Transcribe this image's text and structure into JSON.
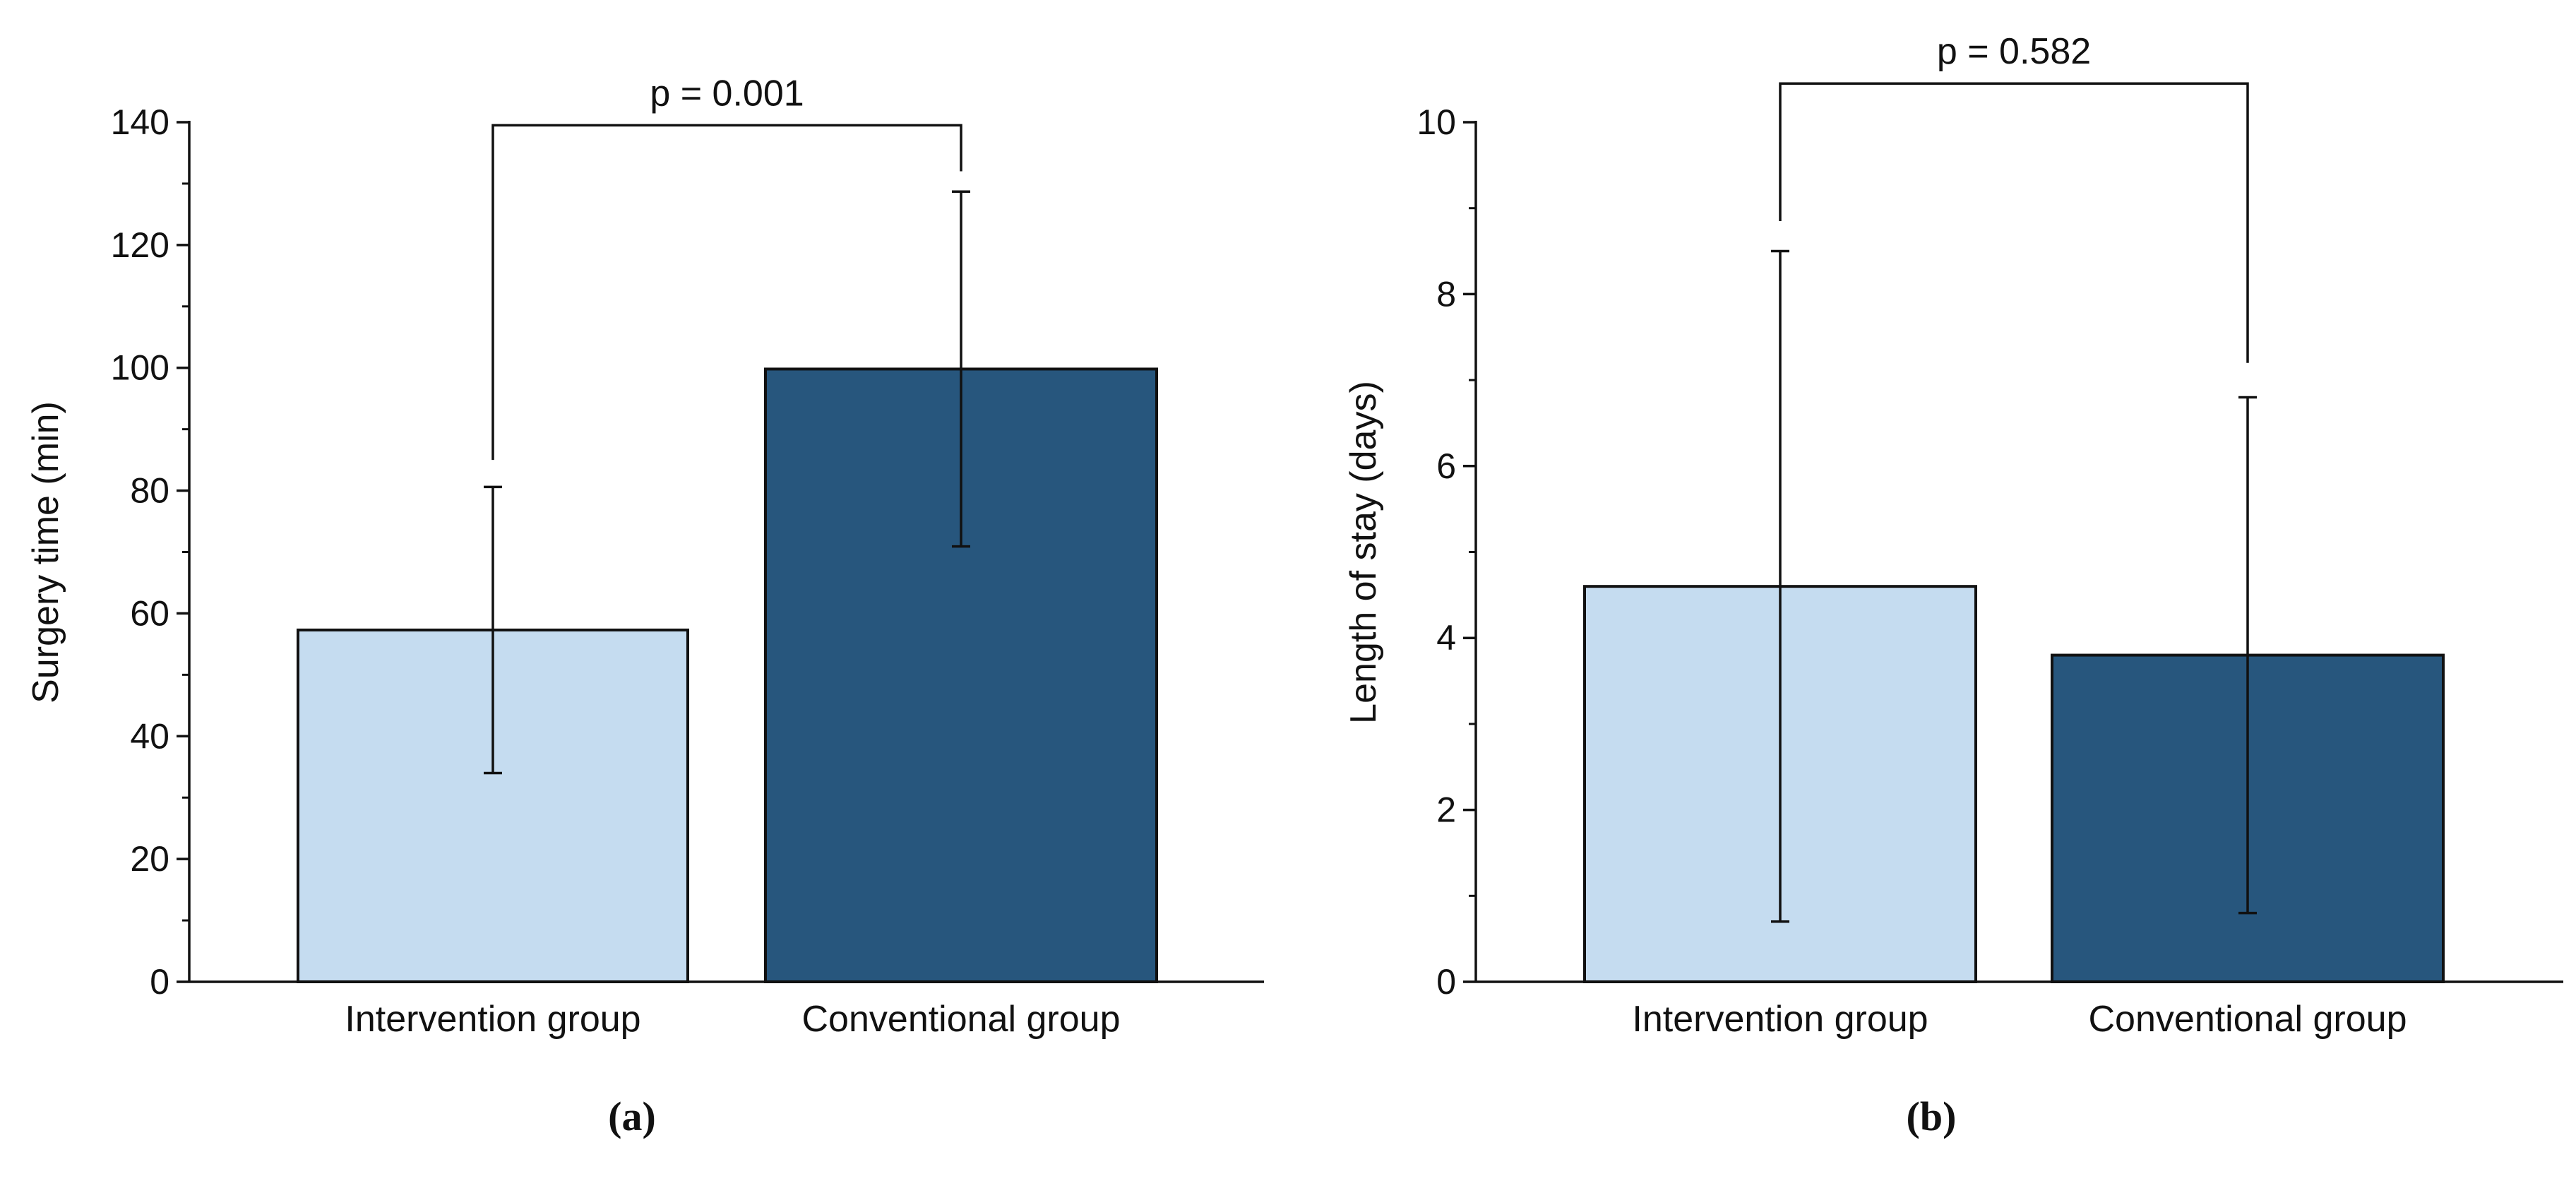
{
  "chart_data": [
    {
      "type": "bar",
      "categories": [
        "Intervention group",
        "Conventional group"
      ],
      "values": [
        57.3,
        99.8
      ],
      "error": [
        {
          "low": 34.0,
          "high": 80.6
        },
        {
          "low": 70.9,
          "high": 128.7
        }
      ],
      "ylabel": "Surgery time (min)",
      "xlabel": "",
      "ylim": [
        0,
        140
      ],
      "yticks": [
        0,
        20,
        40,
        60,
        80,
        100,
        120,
        140
      ],
      "yticks_labels": [
        "0",
        "20",
        "40",
        "60",
        "80",
        "100",
        "120",
        "140"
      ],
      "minor_ticks": true,
      "annotation": {
        "text": "p = 0.001",
        "bracket_top": 139.5,
        "left_end": 85,
        "right_end": 132
      },
      "colors": [
        "#c5dcf0",
        "#27567d"
      ],
      "grid": false,
      "caption": "(a)"
    },
    {
      "type": "bar",
      "categories": [
        "Intervention group",
        "Conventional group"
      ],
      "values": [
        4.6,
        3.8
      ],
      "error": [
        {
          "low": 0.7,
          "high": 8.5
        },
        {
          "low": 0.8,
          "high": 6.8
        }
      ],
      "ylabel": "Length of stay (days)",
      "xlabel": "",
      "ylim": [
        0,
        10
      ],
      "yticks": [
        0,
        2,
        4,
        6,
        8,
        10
      ],
      "yticks_labels": [
        "0",
        "2",
        "4",
        "6",
        "8",
        "10"
      ],
      "minor_ticks": true,
      "annotation": {
        "text": "p = 0.582",
        "bracket_top": 10.45,
        "left_end": 8.85,
        "right_end": 7.2
      },
      "colors": [
        "#c5dcf0",
        "#27567d"
      ],
      "grid": false,
      "caption": "(b)"
    }
  ]
}
